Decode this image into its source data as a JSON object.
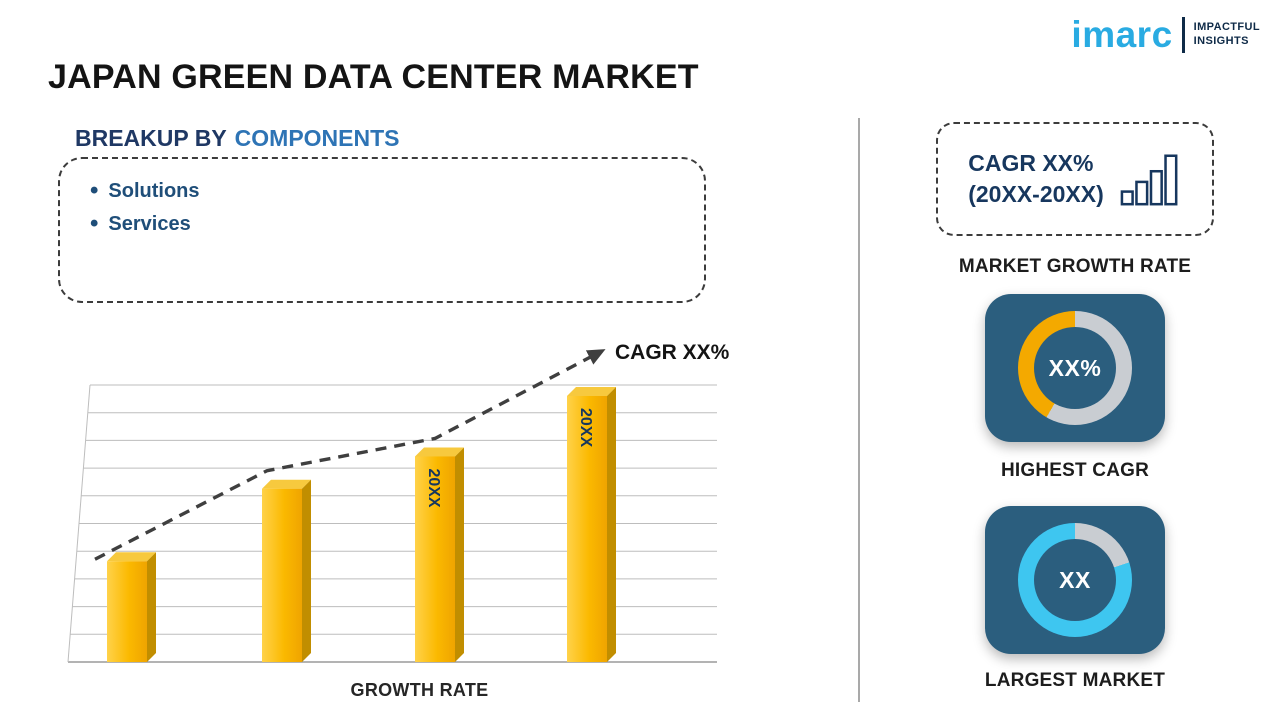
{
  "page": {
    "title": "JAPAN GREEN DATA CENTER MARKET"
  },
  "logo": {
    "brand": "imarc",
    "tagline_line1": "IMPACTFUL",
    "tagline_line2": "INSIGHTS",
    "brand_color": "#29ABE2",
    "navy_color": "#0E2A47"
  },
  "breakup": {
    "heading_prefix": "BREAKUP BY",
    "heading_highlight": "COMPONENTS",
    "items": [
      "Solutions",
      "Services"
    ]
  },
  "chart_data": {
    "type": "bar",
    "categories": [
      "",
      "",
      "20XX",
      "20XX"
    ],
    "values": [
      25,
      43,
      51,
      66
    ],
    "bar_labels": [
      "",
      "",
      "20XX",
      "20XX"
    ],
    "xlabel": "GROWTH RATE",
    "ylabel": "",
    "ylim": [
      0,
      70
    ],
    "grid": true,
    "bar_color": "#FBB900",
    "trend_label": "CAGR XX%",
    "trend_style": "dashed ascending arrow"
  },
  "right_panel": {
    "tile_color": "#2B5E7E",
    "growth_box": {
      "line1": "CAGR XX%",
      "line2": "(20XX-20XX)",
      "caption": "MARKET GROWTH RATE"
    },
    "highest_cagr": {
      "value": "XX%",
      "caption": "HIGHEST CAGR",
      "ring": [
        {
          "color": "#C9CDD2",
          "from": 0,
          "to": 210
        },
        {
          "color": "#F4A900",
          "from": 210,
          "to": 360
        }
      ]
    },
    "largest_market": {
      "value": "XX",
      "caption": "LARGEST MARKET",
      "ring": [
        {
          "color": "#C9CDD2",
          "from": 0,
          "to": 72
        },
        {
          "color": "#3EC6F0",
          "from": 72,
          "to": 360
        }
      ]
    }
  }
}
